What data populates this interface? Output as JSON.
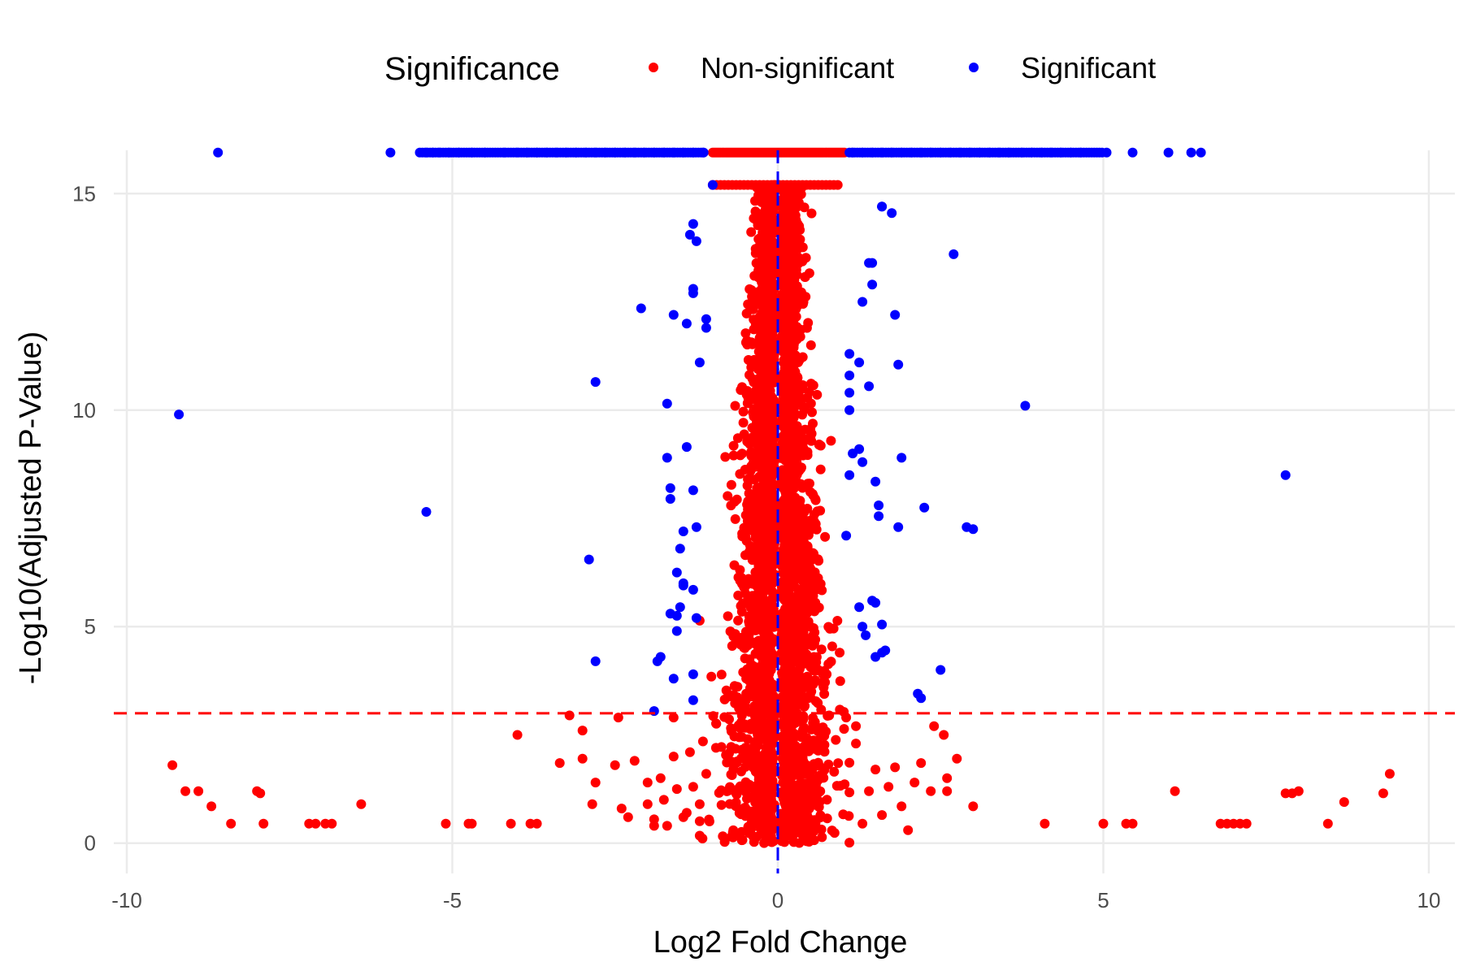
{
  "chart_data": {
    "type": "scatter",
    "title": "",
    "xlabel": "Log2 Fold Change",
    "ylabel": "-Log10(Adjusted P-Value)",
    "xlim": [
      -10.2,
      10.4
    ],
    "ylim": [
      -0.7,
      16.0
    ],
    "x_ticks": [
      -10,
      -5,
      0,
      5,
      10
    ],
    "x_tick_labels": [
      "-10",
      "-5",
      "0",
      "5",
      "10"
    ],
    "y_ticks": [
      0,
      5,
      10,
      15
    ],
    "y_tick_labels": [
      "0",
      "5",
      "10",
      "15"
    ],
    "grid": true,
    "legend": {
      "title": "Significance",
      "position": "top",
      "entries": [
        {
          "label": "Non-significant",
          "color": "#ff0000"
        },
        {
          "label": "Significant",
          "color": "#0000ff"
        }
      ]
    },
    "reference_lines": {
      "horizontal": {
        "y": 3,
        "color": "#ff0000",
        "style": "dashed"
      },
      "vertical": {
        "x": 0,
        "color": "#0000ff",
        "style": "dashed"
      }
    },
    "y_cap": 15.95,
    "series": [
      {
        "name": "Significant",
        "color": "#0000ff",
        "points": [
          [
            -9.2,
            9.9
          ],
          [
            -5.4,
            7.65
          ],
          [
            -2.8,
            10.65
          ],
          [
            -2.9,
            6.55
          ],
          [
            -2.8,
            4.2
          ],
          [
            -2.1,
            12.35
          ],
          [
            -1.7,
            10.15
          ],
          [
            -1.6,
            12.2
          ],
          [
            -1.4,
            12.0
          ],
          [
            -1.1,
            12.1
          ],
          [
            -1.1,
            11.9
          ],
          [
            -1.2,
            11.1
          ],
          [
            -1.3,
            14.3
          ],
          [
            -1.35,
            14.05
          ],
          [
            -1.25,
            13.9
          ],
          [
            -1.3,
            12.8
          ],
          [
            -1.3,
            12.7
          ],
          [
            -1.4,
            9.15
          ],
          [
            -1.7,
            8.9
          ],
          [
            -1.65,
            8.2
          ],
          [
            -1.65,
            7.95
          ],
          [
            -1.45,
            7.2
          ],
          [
            -1.5,
            6.8
          ],
          [
            -1.55,
            6.25
          ],
          [
            -1.45,
            6.0
          ],
          [
            -1.3,
            5.85
          ],
          [
            -1.25,
            5.2
          ],
          [
            -1.55,
            4.9
          ],
          [
            -1.65,
            5.3
          ],
          [
            -1.5,
            5.45
          ],
          [
            -1.3,
            3.9
          ],
          [
            -1.3,
            3.3
          ],
          [
            -1.6,
            3.8
          ],
          [
            -1.8,
            4.3
          ],
          [
            -1.85,
            4.2
          ],
          [
            -1.9,
            3.05
          ],
          [
            -1.25,
            7.3
          ],
          [
            -1.55,
            5.25
          ],
          [
            -1.3,
            8.15
          ],
          [
            -1.45,
            5.95
          ],
          [
            1.1,
            11.3
          ],
          [
            1.1,
            10.8
          ],
          [
            1.1,
            10.4
          ],
          [
            1.1,
            10.0
          ],
          [
            1.25,
            11.1
          ],
          [
            1.4,
            10.55
          ],
          [
            1.15,
            9.0
          ],
          [
            1.25,
            9.1
          ],
          [
            1.3,
            8.8
          ],
          [
            1.1,
            8.5
          ],
          [
            1.5,
            8.35
          ],
          [
            1.55,
            7.8
          ],
          [
            1.55,
            7.55
          ],
          [
            1.85,
            7.3
          ],
          [
            2.25,
            7.75
          ],
          [
            2.9,
            7.3
          ],
          [
            3.0,
            7.25
          ],
          [
            1.05,
            7.1
          ],
          [
            1.25,
            5.45
          ],
          [
            1.3,
            5.0
          ],
          [
            1.45,
            5.6
          ],
          [
            1.5,
            5.55
          ],
          [
            1.6,
            5.05
          ],
          [
            1.65,
            4.45
          ],
          [
            1.6,
            4.4
          ],
          [
            1.35,
            4.8
          ],
          [
            1.5,
            4.3
          ],
          [
            2.5,
            4.0
          ],
          [
            2.15,
            3.45
          ],
          [
            2.2,
            3.35
          ],
          [
            1.9,
            8.9
          ],
          [
            1.6,
            14.7
          ],
          [
            1.75,
            14.55
          ],
          [
            1.4,
            13.4
          ],
          [
            1.45,
            13.4
          ],
          [
            1.45,
            12.9
          ],
          [
            1.3,
            12.5
          ],
          [
            1.8,
            12.2
          ],
          [
            1.85,
            11.05
          ],
          [
            2.7,
            13.6
          ],
          [
            3.8,
            10.1
          ],
          [
            7.8,
            8.5
          ],
          [
            -1.0,
            15.2
          ],
          [
            1.6,
            14.7
          ]
        ]
      },
      {
        "name": "Non-significant",
        "color": "#ff0000",
        "points": [
          [
            -9.3,
            1.8
          ],
          [
            -9.1,
            1.2
          ],
          [
            -8.9,
            1.2
          ],
          [
            -8.7,
            0.85
          ],
          [
            -8.4,
            0.45
          ],
          [
            -8.0,
            1.2
          ],
          [
            -7.95,
            1.15
          ],
          [
            -7.9,
            0.45
          ],
          [
            -7.2,
            0.45
          ],
          [
            -7.1,
            0.45
          ],
          [
            -6.95,
            0.45
          ],
          [
            -6.85,
            0.45
          ],
          [
            -6.4,
            0.9
          ],
          [
            -5.1,
            0.45
          ],
          [
            -4.75,
            0.45
          ],
          [
            -4.7,
            0.45
          ],
          [
            -4.1,
            0.45
          ],
          [
            -4.0,
            2.5
          ],
          [
            -3.8,
            0.45
          ],
          [
            -3.7,
            0.45
          ],
          [
            -3.35,
            1.85
          ],
          [
            -3.2,
            2.95
          ],
          [
            -3.0,
            2.6
          ],
          [
            -3.0,
            1.95
          ],
          [
            -2.8,
            1.4
          ],
          [
            -2.85,
            0.9
          ],
          [
            -2.5,
            1.8
          ],
          [
            -2.4,
            0.8
          ],
          [
            -2.3,
            0.6
          ],
          [
            -2.2,
            1.9
          ],
          [
            -2.0,
            1.4
          ],
          [
            -1.9,
            0.55
          ],
          [
            -1.8,
            1.5
          ],
          [
            -1.75,
            1.0
          ],
          [
            -1.7,
            0.4
          ],
          [
            -1.6,
            2.0
          ],
          [
            -1.55,
            1.25
          ],
          [
            -1.4,
            0.7
          ],
          [
            -1.3,
            1.3
          ],
          [
            -1.2,
            0.9
          ],
          [
            -1.1,
            1.6
          ],
          [
            -1.05,
            0.5
          ],
          [
            -0.95,
            2.2
          ],
          [
            -1.35,
            2.1
          ],
          [
            -1.6,
            2.9
          ],
          [
            -1.9,
            0.4
          ],
          [
            -2.0,
            0.9
          ],
          [
            -2.45,
            2.9
          ],
          [
            -1.15,
            2.35
          ],
          [
            -1.45,
            0.6
          ],
          [
            1.05,
            2.9
          ],
          [
            1.2,
            2.7
          ],
          [
            1.3,
            0.45
          ],
          [
            1.4,
            1.2
          ],
          [
            1.5,
            1.7
          ],
          [
            1.6,
            0.65
          ],
          [
            1.7,
            1.3
          ],
          [
            1.8,
            1.75
          ],
          [
            1.9,
            0.85
          ],
          [
            2.0,
            0.3
          ],
          [
            2.1,
            1.4
          ],
          [
            2.2,
            1.85
          ],
          [
            2.35,
            1.2
          ],
          [
            2.4,
            2.7
          ],
          [
            2.55,
            2.5
          ],
          [
            2.6,
            1.5
          ],
          [
            2.75,
            1.95
          ],
          [
            2.6,
            1.2
          ],
          [
            3.0,
            0.85
          ],
          [
            1.2,
            2.3
          ],
          [
            4.1,
            0.45
          ],
          [
            5.0,
            0.45
          ],
          [
            5.35,
            0.45
          ],
          [
            5.45,
            0.45
          ],
          [
            6.1,
            1.2
          ],
          [
            6.8,
            0.45
          ],
          [
            6.9,
            0.45
          ],
          [
            7.0,
            0.45
          ],
          [
            7.1,
            0.45
          ],
          [
            7.2,
            0.45
          ],
          [
            7.8,
            1.15
          ],
          [
            7.9,
            1.15
          ],
          [
            8.0,
            1.2
          ],
          [
            8.45,
            0.45
          ],
          [
            8.7,
            0.95
          ],
          [
            9.3,
            1.15
          ],
          [
            9.4,
            1.6
          ],
          [
            0.95,
            4.4
          ],
          [
            0.8,
            4.95
          ],
          [
            0.75,
            3.9
          ]
        ]
      }
    ],
    "core_cloud": {
      "series": "Non-significant",
      "description_x_spread": 0.5,
      "count": 3200,
      "x_range": [
        -1.2,
        1.1
      ],
      "y_range": [
        0,
        15.2
      ]
    },
    "capped_points": {
      "significant_x": [
        -8.6,
        -5.95,
        -5.4,
        -5.3,
        -5.2,
        -5.05,
        -4.9,
        -4.7,
        -4.5,
        -4.2,
        -4.0,
        -3.85,
        -3.7,
        -3.55,
        -3.4,
        -3.25,
        -3.1,
        -2.95,
        -2.8,
        -2.65,
        -2.5,
        -2.35,
        -2.2,
        -2.05,
        -1.9,
        -1.75,
        -1.6,
        -1.45,
        -1.3,
        -1.15,
        1.15,
        1.3,
        1.45,
        1.6,
        1.75,
        1.9,
        2.05,
        2.2,
        2.35,
        2.5,
        2.65,
        2.8,
        2.95,
        3.1,
        3.25,
        3.4,
        3.55,
        3.75,
        3.9,
        4.05,
        4.2,
        4.35,
        4.5,
        4.65,
        5.05,
        5.45,
        6.0,
        6.35,
        6.5
      ],
      "nonsignificant_x_range": [
        -1.0,
        1.05
      ]
    }
  }
}
